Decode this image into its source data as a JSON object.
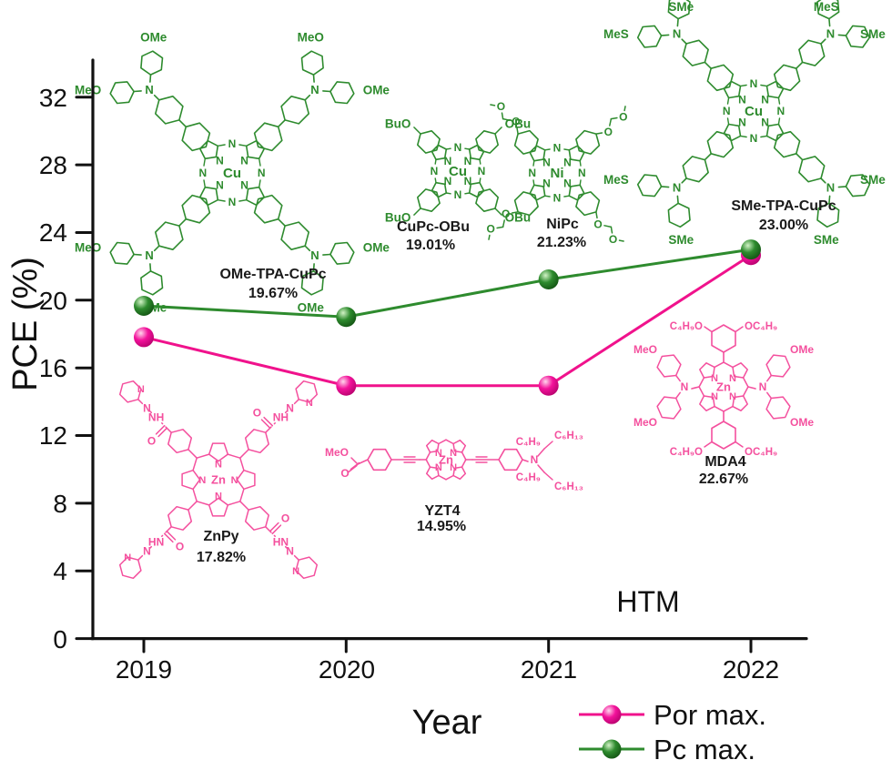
{
  "figure": {
    "htm_label": "HTM"
  },
  "axis": {
    "y_label": "PCE (%)",
    "x_label": "Year",
    "y_ticks": [
      "0",
      "4",
      "8",
      "12",
      "16",
      "20",
      "24",
      "28",
      "32"
    ],
    "x_ticks": [
      "2019",
      "2020",
      "2021",
      "2022"
    ]
  },
  "legend": {
    "items": [
      {
        "label": "Por max.",
        "color": "#f0128c"
      },
      {
        "label": "Pc max.",
        "color": "#2e8b2e"
      }
    ]
  },
  "chart_data": {
    "type": "line",
    "x": [
      2019,
      2020,
      2021,
      2022
    ],
    "series": [
      {
        "name": "Por max.",
        "color": "#f0128c",
        "values": [
          17.82,
          14.95,
          14.95,
          22.67
        ]
      },
      {
        "name": "Pc max.",
        "color": "#2e8b2e",
        "values": [
          19.67,
          19.01,
          21.23,
          23.0
        ]
      }
    ],
    "title": "",
    "xlabel": "Year",
    "ylabel": "PCE (%)",
    "ylim": [
      0,
      34
    ],
    "y_tick_step": 4,
    "grid": false,
    "legend_position": "bottom-right",
    "annotations": [
      "HTM"
    ]
  },
  "molecules": [
    {
      "id": "ome-tpa-cupc",
      "name": "OMe-TPA-CuPc",
      "pce": "19.67%",
      "kind": "phthalocyanine-TPA",
      "metal": "Cu",
      "ring_n": "N",
      "color": "#2e8b2e",
      "arm_labels": [
        [
          "MeO",
          "OMe"
        ],
        [
          "MeO",
          "OMe"
        ],
        [
          "OMe",
          "MeO"
        ],
        [
          "OMe",
          "OMe"
        ]
      ]
    },
    {
      "id": "cupc-obu",
      "name": "CuPc-OBu",
      "pce": "19.01%",
      "kind": "phthalocyanine",
      "metal": "Cu",
      "ring_n": "N",
      "color": "#2e8b2e",
      "corner_labels": [
        "BuO",
        "OBu",
        "BuO",
        "OBu"
      ]
    },
    {
      "id": "nipc",
      "name": "NiPc",
      "pce": "21.23%",
      "kind": "phthalocyanine",
      "metal": "Ni",
      "ring_n": "N",
      "color": "#2e8b2e",
      "chain_label": "O"
    },
    {
      "id": "sme-tpa-cupc",
      "name": "SMe-TPA-CuPc",
      "pce": "23.00%",
      "kind": "phthalocyanine-TPA",
      "metal": "Cu",
      "ring_n": "N",
      "color": "#2e8b2e",
      "arm_labels": [
        [
          "MeS",
          "SMe"
        ],
        [
          "MeS",
          "SMe"
        ],
        [
          "SMe",
          "MeS"
        ],
        [
          "SMe",
          "SMe"
        ]
      ]
    },
    {
      "id": "znpy",
      "name": "ZnPy",
      "pce": "17.82%",
      "kind": "porphyrin",
      "metal": "Zn",
      "ring_n": "N",
      "color": "#f4509e",
      "arms": [
        {
          "o": "O",
          "nh": "NH",
          "n": "N",
          "py_n": "N"
        },
        {
          "o": "O",
          "nh": "NH",
          "n": "N",
          "py_n": "N"
        },
        {
          "o": "O",
          "nh": "HN",
          "n": "N",
          "py_n": "N"
        },
        {
          "o": "O",
          "nh": "HN",
          "n": "N",
          "py_n": "N"
        }
      ]
    },
    {
      "id": "yzt4",
      "name": "YZT4",
      "pce": "14.95%",
      "kind": "porphyrin",
      "metal": "Zn",
      "ring_n": "N",
      "color": "#f4509e",
      "atoms": {
        "meo": "MeO",
        "ester_o": "O",
        "amine_n": "N",
        "c4_top": "C₄H₉",
        "c6_top": "C₆H₁₃",
        "c4_bottom": "C₄H₉",
        "c6_bottom": "C₆H₁₃"
      }
    },
    {
      "id": "mda4",
      "name": "MDA4",
      "pce": "22.67%",
      "kind": "porphyrin",
      "metal": "Zn",
      "ring_n": "N",
      "color": "#f4509e",
      "atoms": {
        "amine_n_left": "N",
        "amine_n_right": "N",
        "top_left": "C₄H₉O",
        "top_right": "OC₄H₉",
        "bottom_left": "C₄H₉O",
        "bottom_right": "OC₄H₉",
        "left_top": "MeO",
        "left_bottom": "MeO",
        "right_top": "OMe",
        "right_bottom": "OMe"
      }
    }
  ]
}
